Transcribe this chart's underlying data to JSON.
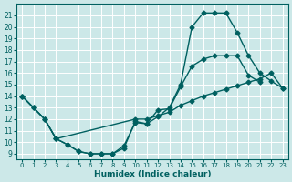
{
  "xlabel": "Humidex (Indice chaleur)",
  "bg_color": "#cce8e8",
  "grid_color": "#ffffff",
  "line_color": "#006060",
  "xlim": [
    -0.5,
    23.5
  ],
  "ylim": [
    8.5,
    22.0
  ],
  "yticks": [
    9,
    10,
    11,
    12,
    13,
    14,
    15,
    16,
    17,
    18,
    19,
    20,
    21
  ],
  "xticks": [
    0,
    1,
    2,
    3,
    4,
    5,
    6,
    7,
    8,
    9,
    10,
    11,
    12,
    13,
    14,
    15,
    16,
    17,
    18,
    19,
    20,
    21,
    22,
    23
  ],
  "curves": [
    {
      "x": [
        0,
        1,
        2,
        3,
        4,
        5,
        6,
        7,
        8,
        9,
        10,
        11,
        12,
        13,
        14,
        15,
        16,
        17,
        18,
        19,
        20,
        21
      ],
      "y": [
        14,
        13,
        12,
        10.3,
        9.8,
        9.2,
        9.0,
        9.0,
        9.0,
        9.5,
        11.8,
        11.6,
        12.8,
        12.9,
        14.8,
        16.6,
        17.2,
        17.5,
        17.5,
        17.5,
        15.8,
        15.2
      ]
    },
    {
      "x": [
        0,
        1,
        2,
        3,
        4,
        5,
        6,
        7,
        8,
        9,
        10,
        11,
        12,
        13,
        14,
        15,
        16,
        17,
        18,
        19,
        20,
        21,
        22,
        23
      ],
      "y": [
        14,
        13,
        12,
        10.3,
        9.8,
        9.2,
        9.0,
        9.0,
        9.0,
        9.7,
        11.7,
        11.6,
        12.2,
        13.0,
        15.0,
        20.0,
        21.2,
        21.2,
        21.2,
        19.5,
        17.5,
        16.0,
        15.3,
        14.7
      ]
    },
    {
      "x": [
        0,
        1,
        2,
        3,
        10,
        11,
        12,
        13,
        14,
        15,
        16,
        17,
        18,
        19,
        20,
        21,
        22,
        23
      ],
      "y": [
        14,
        13,
        12,
        10.3,
        12.0,
        12.0,
        12.3,
        12.6,
        13.2,
        13.6,
        14.0,
        14.3,
        14.6,
        14.9,
        15.2,
        15.5,
        16.0,
        14.7
      ]
    }
  ]
}
